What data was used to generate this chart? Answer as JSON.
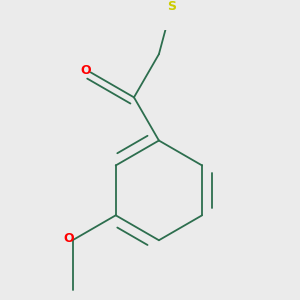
{
  "bg_color": "#ebebeb",
  "bond_color": "#2d6e4e",
  "O_color": "#ff0000",
  "S_color": "#cccc00",
  "O_label": "O",
  "S_label": "S",
  "line_width": 1.3,
  "font_size_hetero": 9
}
